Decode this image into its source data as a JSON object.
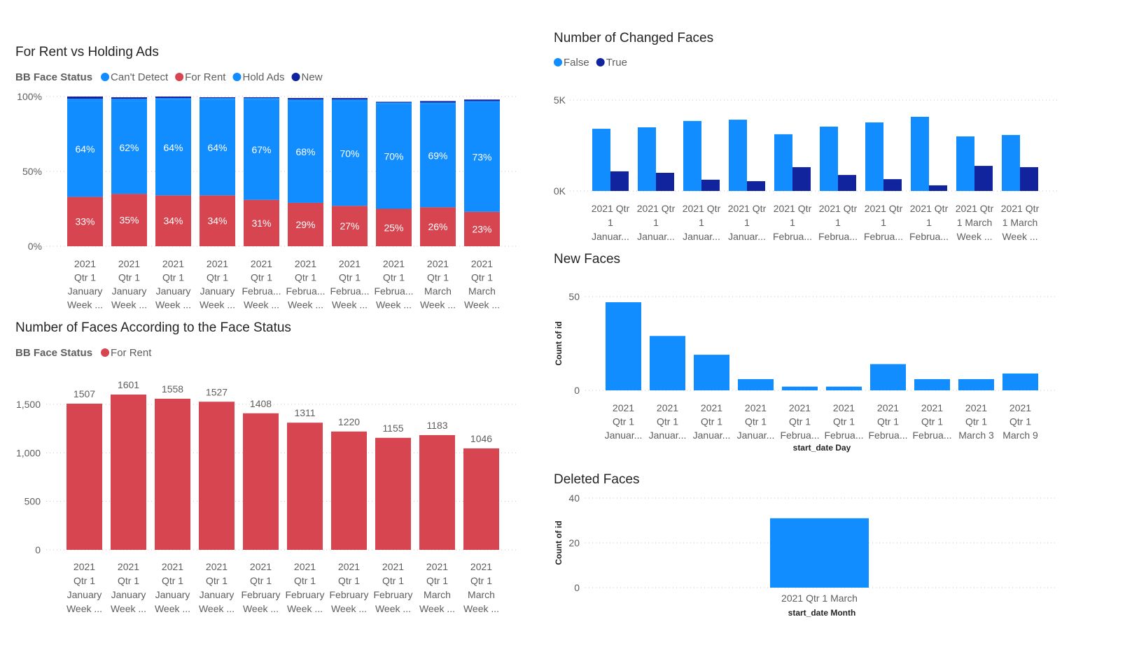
{
  "colors": {
    "hold_ads": "#118DFF",
    "cant_detect": "#118DFF",
    "for_rent": "#D64550",
    "new": "#12239E",
    "false": "#118DFF",
    "true": "#12239E"
  },
  "chart_data": [
    {
      "id": "for-rent-vs-holding",
      "type": "bar",
      "stacked": "100%",
      "title": "For Rent vs Holding Ads",
      "legend_title": "BB Face Status",
      "legend": [
        "Can't Detect",
        "For Rent",
        "Hold Ads",
        "New"
      ],
      "legend_placement": "top-left",
      "yticks": [
        "0%",
        "50%",
        "100%"
      ],
      "ylim": [
        0,
        100
      ],
      "grid": true,
      "categories": [
        [
          "2021",
          "Qtr 1",
          "January",
          "Week ..."
        ],
        [
          "2021",
          "Qtr 1",
          "January",
          "Week ..."
        ],
        [
          "2021",
          "Qtr 1",
          "January",
          "Week ..."
        ],
        [
          "2021",
          "Qtr 1",
          "January",
          "Week ..."
        ],
        [
          "2021",
          "Qtr 1",
          "Februa...",
          "Week ..."
        ],
        [
          "2021",
          "Qtr 1",
          "Februa...",
          "Week ..."
        ],
        [
          "2021",
          "Qtr 1",
          "Februa...",
          "Week ..."
        ],
        [
          "2021",
          "Qtr 1",
          "Februa...",
          "Week ..."
        ],
        [
          "2021",
          "Qtr 1",
          "March",
          "Week ..."
        ],
        [
          "2021",
          "Qtr 1",
          "March",
          "Week ..."
        ]
      ],
      "series": [
        {
          "name": "For Rent",
          "values": [
            33,
            35,
            34,
            34,
            31,
            29,
            27,
            25,
            26,
            23
          ],
          "labels": [
            "33%",
            "35%",
            "34%",
            "34%",
            "31%",
            "29%",
            "27%",
            "25%",
            "26%",
            "23%"
          ]
        },
        {
          "name": "Hold Ads",
          "values": [
            64,
            62,
            64,
            64,
            67,
            68,
            70,
            70,
            69,
            73
          ],
          "labels": [
            "64%",
            "62%",
            "64%",
            "64%",
            "67%",
            "68%",
            "70%",
            "70%",
            "69%",
            "73%"
          ]
        },
        {
          "name": "Can't Detect",
          "values": [
            1.5,
            1.5,
            1,
            1,
            1,
            1,
            1,
            1,
            1,
            1
          ]
        },
        {
          "name": "New",
          "values": [
            1.5,
            1,
            1,
            0.5,
            0.5,
            1,
            1,
            0.5,
            1,
            1
          ]
        }
      ]
    },
    {
      "id": "faces-by-status",
      "type": "bar",
      "title": "Number of Faces According to the Face Status",
      "legend_title": "BB Face Status",
      "legend": [
        "For Rent"
      ],
      "yticks": [
        "0",
        "500",
        "1,000",
        "1,500"
      ],
      "ytick_values": [
        0,
        500,
        1000,
        1500
      ],
      "grid": true,
      "categories": [
        [
          "2021",
          "Qtr 1",
          "January",
          "Week ..."
        ],
        [
          "2021",
          "Qtr 1",
          "January",
          "Week ..."
        ],
        [
          "2021",
          "Qtr 1",
          "January",
          "Week ..."
        ],
        [
          "2021",
          "Qtr 1",
          "January",
          "Week ..."
        ],
        [
          "2021",
          "Qtr 1",
          "February",
          "Week ..."
        ],
        [
          "2021",
          "Qtr 1",
          "February",
          "Week ..."
        ],
        [
          "2021",
          "Qtr 1",
          "February",
          "Week ..."
        ],
        [
          "2021",
          "Qtr 1",
          "February",
          "Week ..."
        ],
        [
          "2021",
          "Qtr 1",
          "March",
          "Week ..."
        ],
        [
          "2021",
          "Qtr 1",
          "March",
          "Week ..."
        ]
      ],
      "series": [
        {
          "name": "For Rent",
          "values": [
            1507,
            1601,
            1558,
            1527,
            1408,
            1311,
            1220,
            1155,
            1183,
            1046
          ],
          "labels": [
            "1507",
            "1601",
            "1558",
            "1527",
            "1408",
            "1311",
            "1220",
            "1155",
            "1183",
            "1046"
          ]
        }
      ]
    },
    {
      "id": "changed-faces",
      "type": "bar",
      "grouped": true,
      "title": "Number of Changed Faces",
      "legend": [
        "False",
        "True"
      ],
      "yticks": [
        "0K",
        "5K"
      ],
      "ytick_values": [
        0,
        5000
      ],
      "grid": true,
      "categories": [
        [
          "2021 Qtr",
          "1",
          "Januar..."
        ],
        [
          "2021 Qtr",
          "1",
          "Januar..."
        ],
        [
          "2021 Qtr",
          "1",
          "Januar..."
        ],
        [
          "2021 Qtr",
          "1",
          "Januar..."
        ],
        [
          "2021 Qtr",
          "1",
          "Februa..."
        ],
        [
          "2021 Qtr",
          "1",
          "Februa..."
        ],
        [
          "2021 Qtr",
          "1",
          "Februa..."
        ],
        [
          "2021 Qtr",
          "1",
          "Februa..."
        ],
        [
          "2021 Qtr",
          "1 March",
          "Week ..."
        ],
        [
          "2021 Qtr",
          "1 March",
          "Week ..."
        ]
      ],
      "series": [
        {
          "name": "False",
          "values": [
            3420,
            3500,
            3850,
            3920,
            3120,
            3540,
            3770,
            4080,
            3000,
            3080
          ]
        },
        {
          "name": "True",
          "values": [
            1080,
            1000,
            620,
            540,
            1310,
            880,
            650,
            310,
            1380,
            1310
          ]
        }
      ]
    },
    {
      "id": "new-faces",
      "type": "bar",
      "title": "New Faces",
      "ylabel": "Count of id",
      "xlabel": "start_date Day",
      "yticks": [
        "0",
        "50"
      ],
      "ytick_values": [
        0,
        50
      ],
      "grid": true,
      "categories": [
        [
          "2021",
          "Qtr 1",
          "Januar..."
        ],
        [
          "2021",
          "Qtr 1",
          "Januar..."
        ],
        [
          "2021",
          "Qtr 1",
          "Januar..."
        ],
        [
          "2021",
          "Qtr 1",
          "Januar..."
        ],
        [
          "2021",
          "Qtr 1",
          "Februa..."
        ],
        [
          "2021",
          "Qtr 1",
          "Februa..."
        ],
        [
          "2021",
          "Qtr 1",
          "Februa..."
        ],
        [
          "2021",
          "Qtr 1",
          "Februa..."
        ],
        [
          "2021",
          "Qtr 1",
          "March 3"
        ],
        [
          "2021",
          "Qtr 1",
          "March 9"
        ]
      ],
      "series": [
        {
          "values": [
            47,
            29,
            19,
            6,
            2,
            2,
            14,
            6,
            6,
            9
          ]
        }
      ]
    },
    {
      "id": "deleted-faces",
      "type": "bar",
      "title": "Deleted Faces",
      "ylabel": "Count of id",
      "xlabel": "start_date Month",
      "yticks": [
        "0",
        "20",
        "40"
      ],
      "ytick_values": [
        0,
        20,
        40
      ],
      "grid": true,
      "categories": [
        [
          "2021 Qtr 1 March"
        ]
      ],
      "series": [
        {
          "values": [
            31
          ]
        }
      ]
    }
  ]
}
